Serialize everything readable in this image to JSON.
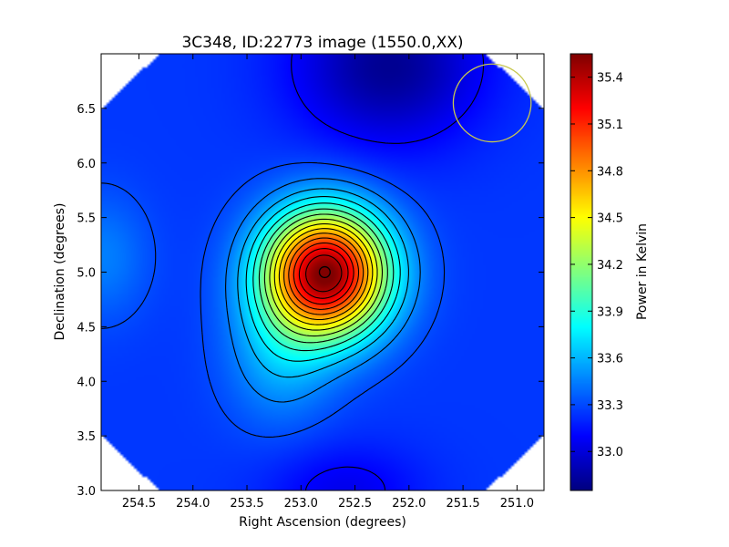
{
  "chart_data": {
    "type": "heatmap",
    "title": "3C348, ID:22773 image (1550.0,XX)",
    "xlabel": "Right Ascension (degrees)",
    "ylabel": "Declination (degrees)",
    "xlim": [
      254.85,
      250.75
    ],
    "ylim": [
      3.0,
      7.0
    ],
    "x_ticks": [
      254.5,
      254.0,
      253.5,
      253.0,
      252.5,
      252.0,
      251.5,
      251.0
    ],
    "x_tick_labels": [
      "254.5",
      "254.0",
      "253.5",
      "253.0",
      "252.5",
      "252.0",
      "251.5",
      "251.0"
    ],
    "y_ticks": [
      3.0,
      3.5,
      4.0,
      4.5,
      5.0,
      5.5,
      6.0,
      6.5
    ],
    "y_tick_labels": [
      "3.0",
      "3.5",
      "4.0",
      "4.5",
      "5.0",
      "5.5",
      "6.0",
      "6.5"
    ],
    "colorbar": {
      "label": "Power in Kelvin",
      "range": [
        32.75,
        35.55
      ],
      "ticks": [
        33.0,
        33.3,
        33.6,
        33.9,
        34.2,
        34.5,
        34.8,
        35.1,
        35.4
      ],
      "tick_labels": [
        "33.0",
        "33.3",
        "33.6",
        "33.9",
        "34.2",
        "34.5",
        "34.8",
        "35.1",
        "35.4"
      ],
      "colormap": "jet"
    },
    "field": {
      "background": 33.25,
      "peak": {
        "ra": 252.78,
        "dec": 5.0,
        "value": 35.55
      },
      "features": [
        {
          "ra": 252.78,
          "dec": 5.0,
          "amplitude": 2.3,
          "sigma_ra": 0.4,
          "sigma_dec": 0.4
        },
        {
          "ra": 253.2,
          "dec": 4.25,
          "amplitude": 0.3,
          "sigma_ra": 0.35,
          "sigma_dec": 0.45
        },
        {
          "ra": 254.85,
          "dec": 5.15,
          "amplitude": 0.2,
          "sigma_ra": 0.3,
          "sigma_dec": 0.4
        },
        {
          "ra": 252.2,
          "dec": 6.9,
          "amplitude": -0.45,
          "sigma_ra": 0.6,
          "sigma_dec": 0.5
        },
        {
          "ra": 252.6,
          "dec": 3.0,
          "amplitude": -0.2,
          "sigma_ra": 0.5,
          "sigma_dec": 0.3
        }
      ]
    },
    "contour_levels": [
      33.1,
      33.3,
      33.45,
      33.6,
      33.75,
      33.9,
      34.05,
      34.2,
      34.35,
      34.5,
      34.65,
      34.8,
      34.95,
      35.1,
      35.25,
      35.4
    ],
    "markers": [
      {
        "type": "circle",
        "ra": 252.78,
        "dec": 5.0,
        "radius_deg": 0.05,
        "color": "#000000"
      },
      {
        "type": "circle",
        "ra": 251.23,
        "dec": 6.55,
        "radius_deg": 0.36,
        "color": "#c8c850"
      }
    ],
    "colors": {
      "frame": "#000000",
      "contours": "#000000",
      "beam": "#c8c850"
    }
  }
}
